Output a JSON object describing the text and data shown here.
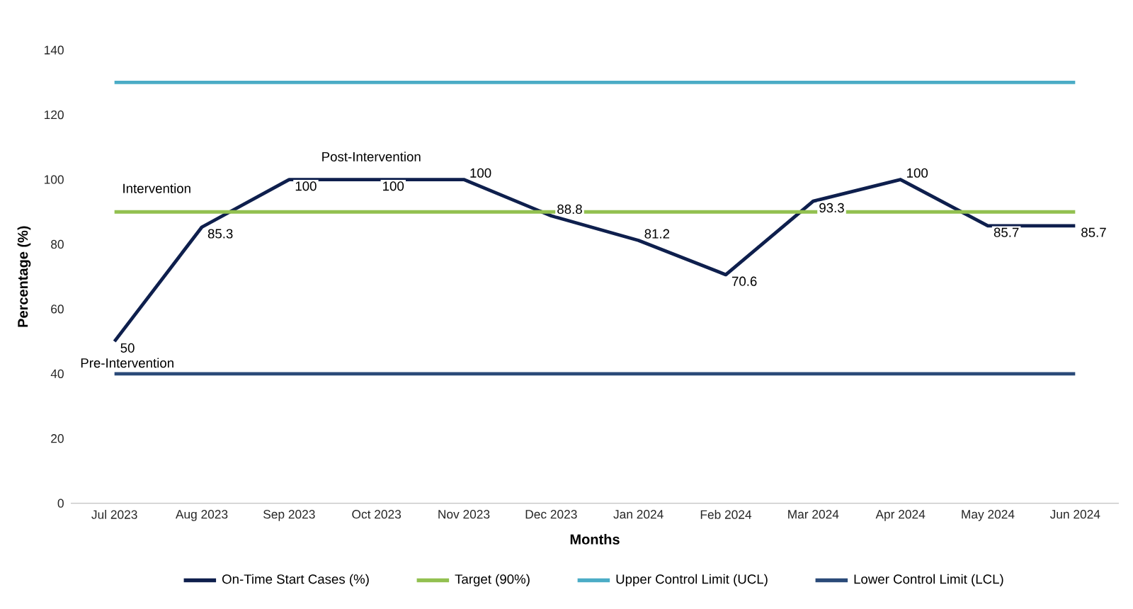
{
  "chart_data": {
    "type": "line",
    "xlabel": "Months",
    "ylabel": "Percentage (%)",
    "categories": [
      "Jul 2023",
      "Aug 2023",
      "Sep 2023",
      "Oct 2023",
      "Nov 2023",
      "Dec 2023",
      "Jan 2024",
      "Feb 2024",
      "Mar 2024",
      "Apr 2024",
      "May 2024",
      "Jun 2024"
    ],
    "series": [
      {
        "name": "On-Time Start Cases (%)",
        "color": "#0e1f4d",
        "values": [
          50,
          85.3,
          100,
          100,
          100,
          88.8,
          81.2,
          70.6,
          93.3,
          100,
          85.7,
          85.7
        ],
        "value_labels": [
          "50",
          "85.3",
          "100",
          "100",
          "100",
          "88.8",
          "81.2",
          "70.6",
          "93.3",
          "100",
          "85.7",
          "85.7"
        ]
      },
      {
        "name": "Target (90%)",
        "color": "#92c050",
        "values": [
          90,
          90,
          90,
          90,
          90,
          90,
          90,
          90,
          90,
          90,
          90,
          90
        ]
      },
      {
        "name": "Upper Control Limit (UCL)",
        "color": "#4bacc6",
        "values": [
          130,
          130,
          130,
          130,
          130,
          130,
          130,
          130,
          130,
          130,
          130,
          130
        ]
      },
      {
        "name": "Lower Control Limit (LCL)",
        "color": "#2a4a78",
        "values": [
          40,
          40,
          40,
          40,
          40,
          40,
          40,
          40,
          40,
          40,
          40,
          40
        ]
      }
    ],
    "annotations": [
      "Post-Intervention",
      "Intervention",
      "Pre-Intervention"
    ],
    "ylim": [
      0,
      140
    ],
    "yticks": [
      0,
      20,
      40,
      60,
      80,
      100,
      120,
      140
    ],
    "grid": false,
    "legend": "bottom",
    "marker": "none",
    "line_style": "solid"
  }
}
